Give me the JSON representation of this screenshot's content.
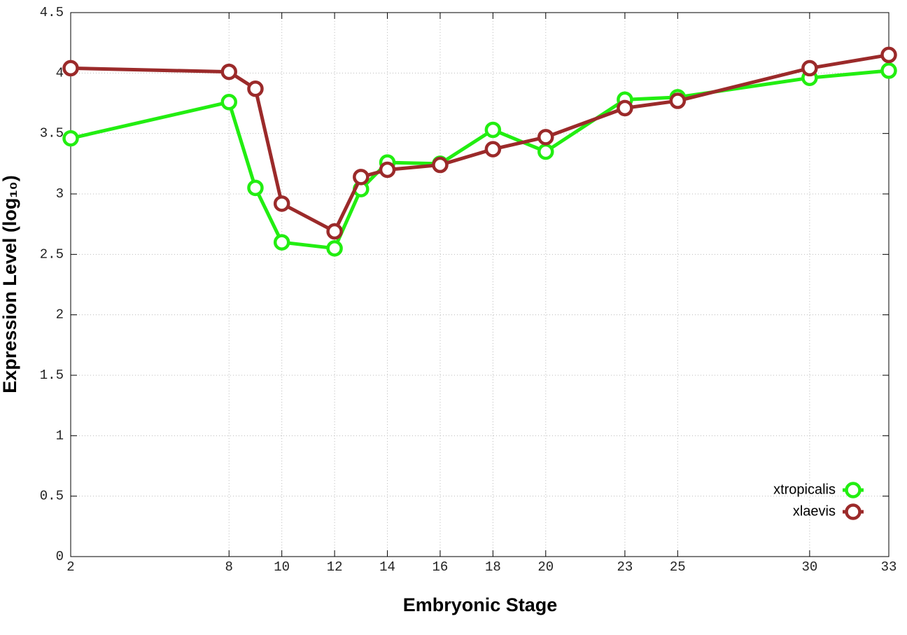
{
  "chart_data": {
    "type": "line",
    "xlabel": "Embryonic Stage",
    "ylabel": "Expression Level (log₁₀)",
    "x": [
      2,
      8,
      9,
      10,
      12,
      13,
      14,
      16,
      18,
      20,
      23,
      25,
      30,
      33
    ],
    "series": [
      {
        "name": "xtropicalis",
        "color": "#22ee11",
        "values": [
          3.46,
          3.76,
          3.05,
          2.6,
          2.55,
          3.04,
          3.26,
          3.25,
          3.53,
          3.35,
          3.78,
          3.8,
          3.96,
          4.02
        ]
      },
      {
        "name": "xlaevis",
        "color": "#9b2a2a",
        "values": [
          4.04,
          4.01,
          3.87,
          2.92,
          2.69,
          3.14,
          3.2,
          3.24,
          3.37,
          3.47,
          3.71,
          3.77,
          4.04,
          4.15
        ]
      }
    ],
    "xlim": [
      2,
      33
    ],
    "xticks": [
      2,
      8,
      10,
      12,
      14,
      16,
      18,
      20,
      23,
      25,
      30,
      33
    ],
    "ylim": [
      0,
      4.5
    ],
    "yticks": [
      0,
      0.5,
      1,
      1.5,
      2,
      2.5,
      3,
      3.5,
      4,
      4.5
    ],
    "grid": true,
    "legend": "bottom-right"
  }
}
